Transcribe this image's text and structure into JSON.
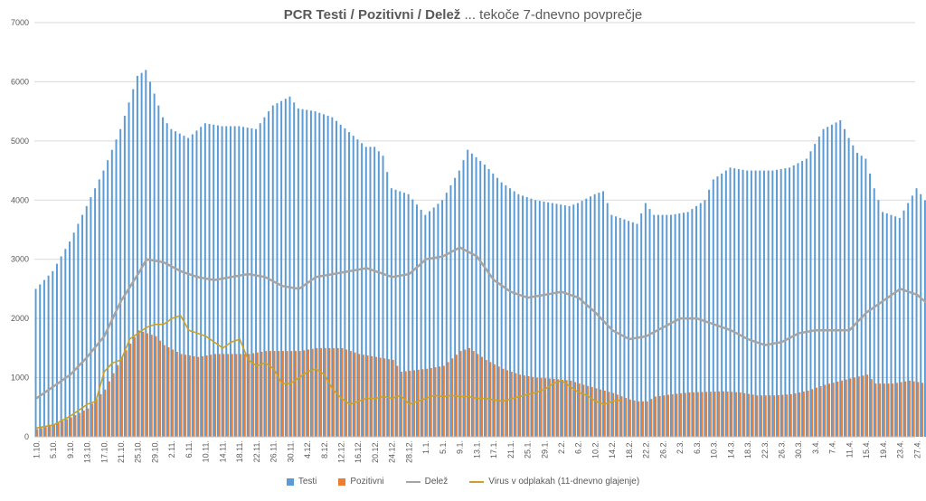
{
  "chart_data": {
    "type": "bar",
    "title_bold": "PCR Testi / Pozitivni / Delež",
    "title_rest": " ... tekoče 7-dnevno povprečje",
    "ylim": [
      0,
      7000
    ],
    "yticks": [
      0,
      1000,
      2000,
      3000,
      4000,
      5000,
      6000,
      7000
    ],
    "x_tick_labels": [
      "1.10.",
      "5.10.",
      "9.10.",
      "13.10.",
      "17.10.",
      "21.10.",
      "25.10.",
      "29.10.",
      "2.11.",
      "6.11.",
      "10.11.",
      "14.11.",
      "18.11.",
      "22.11.",
      "26.11.",
      "30.11.",
      "4.12.",
      "8.12.",
      "12.12.",
      "16.12.",
      "20.12.",
      "24.12.",
      "28.12.",
      "1.1.",
      "5.1.",
      "9.1.",
      "13.1.",
      "17.1.",
      "21.1.",
      "25.1.",
      "29.1.",
      "2.2.",
      "6.2.",
      "10.2.",
      "14.2.",
      "18.2.",
      "22.2.",
      "26.2.",
      "2.3.",
      "6.3.",
      "10.3.",
      "14.3.",
      "18.3.",
      "22.3.",
      "26.3.",
      "30.3.",
      "3.4.",
      "7.4.",
      "11.4.",
      "15.4.",
      "19.4.",
      "23.4.",
      "27.4."
    ],
    "x_tick_step_days": 4,
    "n_days": 208,
    "series": [
      {
        "name": "Testi",
        "kind": "bar",
        "color": "#5B9BD5",
        "keypoints": [
          [
            0,
            2500
          ],
          [
            4,
            2800
          ],
          [
            8,
            3300
          ],
          [
            12,
            3900
          ],
          [
            16,
            4500
          ],
          [
            20,
            5200
          ],
          [
            24,
            6100
          ],
          [
            26,
            6200
          ],
          [
            28,
            5800
          ],
          [
            30,
            5400
          ],
          [
            32,
            5200
          ],
          [
            36,
            5050
          ],
          [
            40,
            5300
          ],
          [
            44,
            5250
          ],
          [
            48,
            5250
          ],
          [
            52,
            5200
          ],
          [
            56,
            5600
          ],
          [
            60,
            5750
          ],
          [
            62,
            5550
          ],
          [
            66,
            5500
          ],
          [
            70,
            5400
          ],
          [
            74,
            5150
          ],
          [
            78,
            4900
          ],
          [
            80,
            4900
          ],
          [
            82,
            4750
          ],
          [
            84,
            4200
          ],
          [
            88,
            4100
          ],
          [
            92,
            3750
          ],
          [
            96,
            4000
          ],
          [
            100,
            4500
          ],
          [
            102,
            4850
          ],
          [
            106,
            4600
          ],
          [
            110,
            4300
          ],
          [
            114,
            4100
          ],
          [
            118,
            4000
          ],
          [
            122,
            3950
          ],
          [
            126,
            3900
          ],
          [
            128,
            3950
          ],
          [
            132,
            4100
          ],
          [
            134,
            4150
          ],
          [
            136,
            3750
          ],
          [
            142,
            3600
          ],
          [
            144,
            3950
          ],
          [
            146,
            3750
          ],
          [
            150,
            3750
          ],
          [
            154,
            3800
          ],
          [
            158,
            4000
          ],
          [
            160,
            4350
          ],
          [
            164,
            4550
          ],
          [
            168,
            4500
          ],
          [
            174,
            4500
          ],
          [
            178,
            4550
          ],
          [
            182,
            4700
          ],
          [
            186,
            5200
          ],
          [
            190,
            5350
          ],
          [
            192,
            5050
          ],
          [
            194,
            4800
          ],
          [
            196,
            4700
          ],
          [
            198,
            4200
          ],
          [
            200,
            3800
          ],
          [
            204,
            3700
          ],
          [
            208,
            4200
          ],
          [
            212,
            3800
          ],
          [
            216,
            3550
          ],
          [
            220,
            3900
          ],
          [
            224,
            3550
          ],
          [
            228,
            3300
          ]
        ]
      },
      {
        "name": "Pozitivni",
        "kind": "bar",
        "color": "#ED7D31",
        "keypoints": [
          [
            0,
            130
          ],
          [
            4,
            200
          ],
          [
            8,
            330
          ],
          [
            12,
            480
          ],
          [
            16,
            800
          ],
          [
            20,
            1350
          ],
          [
            24,
            1800
          ],
          [
            28,
            1700
          ],
          [
            30,
            1550
          ],
          [
            34,
            1400
          ],
          [
            38,
            1350
          ],
          [
            42,
            1400
          ],
          [
            46,
            1400
          ],
          [
            50,
            1400
          ],
          [
            54,
            1450
          ],
          [
            58,
            1450
          ],
          [
            62,
            1450
          ],
          [
            66,
            1500
          ],
          [
            72,
            1500
          ],
          [
            76,
            1400
          ],
          [
            80,
            1350
          ],
          [
            84,
            1300
          ],
          [
            86,
            1100
          ],
          [
            92,
            1150
          ],
          [
            96,
            1200
          ],
          [
            100,
            1450
          ],
          [
            102,
            1500
          ],
          [
            106,
            1300
          ],
          [
            110,
            1150
          ],
          [
            114,
            1050
          ],
          [
            118,
            1000
          ],
          [
            122,
            980
          ],
          [
            126,
            950
          ],
          [
            128,
            900
          ],
          [
            132,
            820
          ],
          [
            136,
            740
          ],
          [
            140,
            630
          ],
          [
            142,
            600
          ],
          [
            144,
            600
          ],
          [
            146,
            680
          ],
          [
            150,
            720
          ],
          [
            154,
            750
          ],
          [
            158,
            760
          ],
          [
            162,
            770
          ],
          [
            166,
            750
          ],
          [
            170,
            700
          ],
          [
            174,
            700
          ],
          [
            178,
            720
          ],
          [
            182,
            780
          ],
          [
            186,
            880
          ],
          [
            190,
            950
          ],
          [
            194,
            1020
          ],
          [
            196,
            1050
          ],
          [
            198,
            900
          ],
          [
            202,
            900
          ],
          [
            206,
            950
          ],
          [
            210,
            900
          ],
          [
            214,
            750
          ],
          [
            218,
            720
          ],
          [
            222,
            700
          ],
          [
            226,
            660
          ],
          [
            228,
            640
          ]
        ]
      },
      {
        "name": "Delež",
        "kind": "line",
        "color": "#A5A5A5",
        "keypoints": [
          [
            0,
            650
          ],
          [
            4,
            850
          ],
          [
            8,
            1050
          ],
          [
            12,
            1350
          ],
          [
            16,
            1700
          ],
          [
            20,
            2300
          ],
          [
            24,
            2750
          ],
          [
            26,
            3000
          ],
          [
            30,
            2950
          ],
          [
            34,
            2800
          ],
          [
            38,
            2700
          ],
          [
            42,
            2650
          ],
          [
            46,
            2700
          ],
          [
            50,
            2750
          ],
          [
            54,
            2700
          ],
          [
            58,
            2550
          ],
          [
            62,
            2500
          ],
          [
            66,
            2700
          ],
          [
            70,
            2750
          ],
          [
            74,
            2800
          ],
          [
            78,
            2850
          ],
          [
            80,
            2800
          ],
          [
            84,
            2700
          ],
          [
            88,
            2750
          ],
          [
            92,
            3000
          ],
          [
            96,
            3050
          ],
          [
            100,
            3200
          ],
          [
            104,
            3050
          ],
          [
            108,
            2650
          ],
          [
            112,
            2450
          ],
          [
            116,
            2350
          ],
          [
            120,
            2400
          ],
          [
            124,
            2450
          ],
          [
            128,
            2350
          ],
          [
            132,
            2100
          ],
          [
            136,
            1800
          ],
          [
            140,
            1650
          ],
          [
            144,
            1700
          ],
          [
            148,
            1850
          ],
          [
            152,
            2000
          ],
          [
            156,
            2000
          ],
          [
            160,
            1900
          ],
          [
            164,
            1800
          ],
          [
            168,
            1650
          ],
          [
            172,
            1550
          ],
          [
            176,
            1600
          ],
          [
            180,
            1750
          ],
          [
            184,
            1800
          ],
          [
            188,
            1800
          ],
          [
            192,
            1800
          ],
          [
            196,
            2100
          ],
          [
            200,
            2300
          ],
          [
            204,
            2500
          ],
          [
            208,
            2400
          ],
          [
            212,
            2150
          ],
          [
            216,
            2050
          ],
          [
            220,
            1850
          ],
          [
            224,
            1750
          ],
          [
            226,
            1800
          ],
          [
            228,
            1950
          ]
        ]
      },
      {
        "name": "Virus v odplakah (11-dnevno glajenje)",
        "kind": "line",
        "color": "#C9A227",
        "keypoints": [
          [
            0,
            150
          ],
          [
            4,
            200
          ],
          [
            8,
            350
          ],
          [
            12,
            550
          ],
          [
            14,
            600
          ],
          [
            16,
            1100
          ],
          [
            18,
            1250
          ],
          [
            20,
            1300
          ],
          [
            22,
            1650
          ],
          [
            24,
            1750
          ],
          [
            26,
            1850
          ],
          [
            28,
            1900
          ],
          [
            30,
            1900
          ],
          [
            32,
            2000
          ],
          [
            34,
            2050
          ],
          [
            36,
            1800
          ],
          [
            38,
            1750
          ],
          [
            40,
            1700
          ],
          [
            42,
            1600
          ],
          [
            44,
            1500
          ],
          [
            46,
            1600
          ],
          [
            48,
            1650
          ],
          [
            50,
            1300
          ],
          [
            52,
            1200
          ],
          [
            54,
            1250
          ],
          [
            56,
            1150
          ],
          [
            58,
            900
          ],
          [
            60,
            900
          ],
          [
            62,
            1000
          ],
          [
            64,
            1100
          ],
          [
            66,
            1150
          ],
          [
            68,
            1050
          ],
          [
            70,
            800
          ],
          [
            72,
            650
          ],
          [
            74,
            550
          ],
          [
            76,
            600
          ],
          [
            78,
            650
          ],
          [
            80,
            650
          ],
          [
            82,
            680
          ],
          [
            84,
            650
          ],
          [
            86,
            700
          ],
          [
            88,
            550
          ],
          [
            90,
            600
          ],
          [
            92,
            650
          ],
          [
            94,
            700
          ],
          [
            96,
            680
          ],
          [
            98,
            700
          ],
          [
            100,
            680
          ],
          [
            102,
            680
          ],
          [
            104,
            650
          ],
          [
            106,
            650
          ],
          [
            110,
            600
          ],
          [
            114,
            680
          ],
          [
            118,
            750
          ],
          [
            120,
            800
          ],
          [
            122,
            900
          ],
          [
            124,
            950
          ],
          [
            126,
            850
          ],
          [
            128,
            750
          ],
          [
            130,
            700
          ],
          [
            132,
            600
          ],
          [
            134,
            550
          ],
          [
            136,
            600
          ],
          [
            138,
            620
          ]
        ]
      }
    ],
    "legend": [
      "Testi",
      "Pozitivni",
      "Delež",
      "Virus v odplakah (11-dnevno glajenje)"
    ],
    "legend_position": "bottom",
    "grid": true
  }
}
